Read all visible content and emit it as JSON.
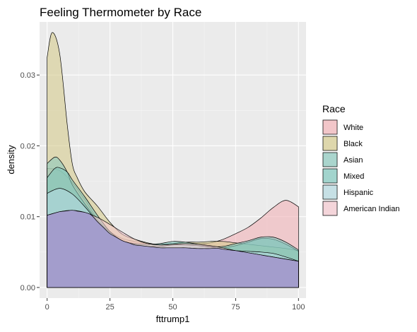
{
  "chart_data": {
    "type": "area",
    "subtype": "density",
    "title": "Feeling Thermometer by Race",
    "xlabel": "fttrump1",
    "ylabel": "density",
    "xlim": [
      -3,
      103
    ],
    "ylim": [
      -0.0015,
      0.0375
    ],
    "x_ticks": [
      0,
      25,
      50,
      75,
      100
    ],
    "x_tick_labels": [
      "0",
      "25",
      "50",
      "75",
      "100"
    ],
    "y_ticks": [
      0,
      0.01,
      0.02,
      0.03
    ],
    "y_tick_labels": [
      "0.00",
      "0.01",
      "0.02",
      "0.03"
    ],
    "grid": true,
    "legend": {
      "title": "Race",
      "position": "right"
    },
    "series": [
      {
        "name": "White",
        "color": "#f2b3b8",
        "x": [
          0,
          5,
          10,
          15,
          20,
          25,
          30,
          35,
          40,
          45,
          50,
          55,
          60,
          65,
          70,
          75,
          80,
          85,
          90,
          95,
          100
        ],
        "values": [
          0.0168,
          0.0165,
          0.0148,
          0.0124,
          0.0097,
          0.0079,
          0.0069,
          0.0065,
          0.0062,
          0.0061,
          0.0062,
          0.0062,
          0.0062,
          0.0063,
          0.0068,
          0.0076,
          0.0085,
          0.0098,
          0.0113,
          0.0123,
          0.0114
        ]
      },
      {
        "name": "Black",
        "color": "#d6cc8e",
        "x": [
          0,
          2,
          5,
          8,
          10,
          12,
          15,
          20,
          25,
          30,
          35,
          40,
          45,
          50,
          55,
          60,
          65,
          70,
          75,
          80,
          85,
          90,
          95,
          100
        ],
        "values": [
          0.0325,
          0.036,
          0.033,
          0.023,
          0.0175,
          0.0155,
          0.0135,
          0.0115,
          0.0092,
          0.0075,
          0.0068,
          0.0063,
          0.006,
          0.0062,
          0.0064,
          0.0064,
          0.0065,
          0.0065,
          0.0063,
          0.0061,
          0.0059,
          0.0057,
          0.0055,
          0.0052
        ]
      },
      {
        "name": "Asian",
        "color": "#8cc9bd",
        "x": [
          0,
          3,
          5,
          8,
          10,
          15,
          20,
          25,
          30,
          35,
          40,
          45,
          50,
          55,
          60,
          65,
          70,
          75,
          80,
          85,
          90,
          95,
          100
        ],
        "values": [
          0.0175,
          0.0184,
          0.018,
          0.0163,
          0.0145,
          0.0118,
          0.0095,
          0.0078,
          0.0066,
          0.0061,
          0.0058,
          0.0056,
          0.0056,
          0.0056,
          0.0055,
          0.0055,
          0.0056,
          0.0059,
          0.0064,
          0.0069,
          0.0068,
          0.0061,
          0.0051
        ]
      },
      {
        "name": "Mixed",
        "color": "#80c7bd",
        "x": [
          0,
          3,
          5,
          8,
          10,
          15,
          20,
          25,
          30,
          35,
          40,
          45,
          50,
          55,
          60,
          65,
          70,
          75,
          80,
          85,
          90,
          95,
          100
        ],
        "values": [
          0.0155,
          0.0168,
          0.0169,
          0.0163,
          0.0152,
          0.0128,
          0.0102,
          0.0079,
          0.0066,
          0.0062,
          0.0061,
          0.0062,
          0.0065,
          0.0064,
          0.0061,
          0.0058,
          0.0058,
          0.0062,
          0.0066,
          0.0071,
          0.0071,
          0.0064,
          0.0053
        ]
      },
      {
        "name": "Hispanic",
        "color": "#b3d9e0",
        "x": [
          0,
          5,
          10,
          15,
          20,
          25,
          30,
          35,
          40,
          45,
          50,
          55,
          60,
          65,
          70,
          75,
          80,
          85,
          90,
          95,
          100
        ],
        "values": [
          0.0133,
          0.014,
          0.0132,
          0.0114,
          0.0093,
          0.0076,
          0.0066,
          0.006,
          0.0058,
          0.0058,
          0.006,
          0.006,
          0.0059,
          0.0057,
          0.0054,
          0.0052,
          0.0051,
          0.005,
          0.0048,
          0.0043,
          0.0037
        ]
      },
      {
        "name": "American Indian",
        "color": "#f5c9d0",
        "x": [
          0,
          5,
          10,
          15,
          20,
          25,
          30,
          35,
          40,
          45,
          50,
          55,
          60,
          65,
          70,
          75,
          80,
          85,
          90,
          95,
          100
        ],
        "values": [
          0.0102,
          0.0107,
          0.0109,
          0.0106,
          0.0099,
          0.0089,
          0.0078,
          0.0068,
          0.0062,
          0.006,
          0.0061,
          0.0062,
          0.0061,
          0.0059,
          0.0056,
          0.0052,
          0.0049,
          0.0046,
          0.0043,
          0.004,
          0.0037
        ]
      }
    ],
    "overlay_fill_color": "#9b94cb"
  }
}
